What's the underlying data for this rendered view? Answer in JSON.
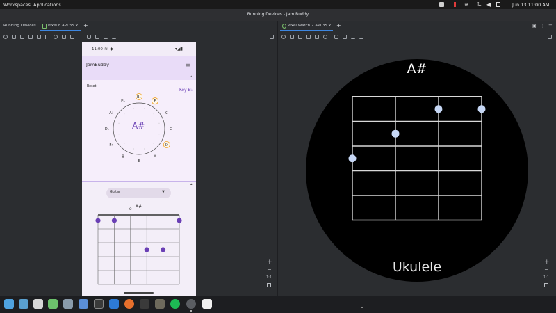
{
  "topbar": {
    "workspaces": "Workspaces",
    "applications": "Applications",
    "clock": "Jun 13  11:00 AM"
  },
  "window": {
    "title": "Running Devices - Jam Buddy"
  },
  "tabs": {
    "running_devices": "Running Devices",
    "phone_tab": "Pixel 8 API 35",
    "watch_tab": "Pixel Watch 2 API 35",
    "close_glyph": "×",
    "add_glyph": "+"
  },
  "phone": {
    "status_time": "11:00",
    "app_title": "JamBuddy",
    "reset_label": "Reset",
    "key_label": "Key B♭",
    "center_chord": "A#",
    "circle_notes": [
      {
        "label": "B♭",
        "highlight": true
      },
      {
        "label": "F",
        "highlight": true
      },
      {
        "label": "C",
        "highlight": false
      },
      {
        "label": "G",
        "highlight": false
      },
      {
        "label": "D",
        "highlight": true
      },
      {
        "label": "A",
        "highlight": false
      },
      {
        "label": "E",
        "highlight": false
      },
      {
        "label": "B",
        "highlight": false
      },
      {
        "label": "F♯",
        "highlight": false
      },
      {
        "label": "D♭",
        "highlight": false
      },
      {
        "label": "A♭",
        "highlight": false
      },
      {
        "label": "E♭",
        "highlight": false
      }
    ],
    "instrument_select": "Guitar",
    "chord_name": "A#",
    "open_marker": "O",
    "guitar_dots": [
      {
        "string": 0,
        "fret": 0
      },
      {
        "string": 1,
        "fret": 0
      },
      {
        "string": 5,
        "fret": 0
      },
      {
        "string": 3,
        "fret": 2
      },
      {
        "string": 4,
        "fret": 2
      }
    ]
  },
  "watch": {
    "chord_name": "A#",
    "instrument": "Ukulele",
    "ukulele_dots": [
      {
        "string": 0,
        "fret": 2.5
      },
      {
        "string": 1,
        "fret": 1.5
      },
      {
        "string": 2,
        "fret": 0.5
      },
      {
        "string": 3,
        "fret": 0.5
      }
    ]
  },
  "zoom": {
    "plus": "+",
    "minus": "−",
    "one_to_one": "1:1"
  },
  "colors": {
    "accent": "#6a3fb5",
    "watch_dot": "#c6d7f5",
    "highlight_ring": "#f0a020"
  }
}
